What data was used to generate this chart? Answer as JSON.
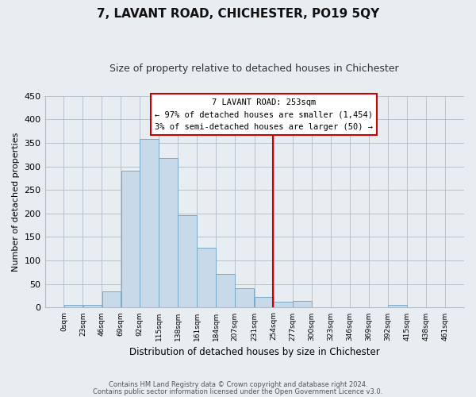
{
  "title": "7, LAVANT ROAD, CHICHESTER, PO19 5QY",
  "subtitle": "Size of property relative to detached houses in Chichester",
  "xlabel": "Distribution of detached houses by size in Chichester",
  "ylabel": "Number of detached properties",
  "bin_edges": [
    0,
    23,
    46,
    69,
    92,
    115,
    138,
    161,
    184,
    207,
    231,
    254,
    277,
    300,
    323,
    346,
    369,
    392,
    415,
    438,
    461
  ],
  "bar_heights": [
    5,
    5,
    35,
    290,
    358,
    318,
    197,
    128,
    72,
    42,
    22,
    13,
    14,
    0,
    0,
    0,
    0,
    5,
    0,
    0
  ],
  "bar_color": "#c8daea",
  "bar_edge_color": "#7aaac8",
  "vline_x": 253,
  "vline_color": "#cc0000",
  "ylim": [
    0,
    450
  ],
  "yticks": [
    0,
    50,
    100,
    150,
    200,
    250,
    300,
    350,
    400,
    450
  ],
  "annotation_title": "7 LAVANT ROAD: 253sqm",
  "annotation_line1": "← 97% of detached houses are smaller (1,454)",
  "annotation_line2": "3% of semi-detached houses are larger (50) →",
  "footnote1": "Contains HM Land Registry data © Crown copyright and database right 2024.",
  "footnote2": "Contains public sector information licensed under the Open Government Licence v3.0.",
  "bg_color": "#e8edf2",
  "plot_bg_color": "#e8edf2",
  "grid_color": "#b0bbc8"
}
